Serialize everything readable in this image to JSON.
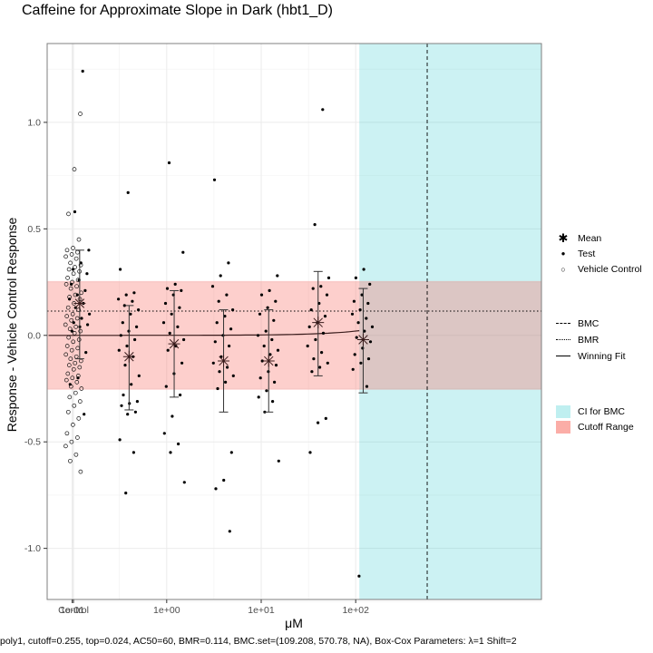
{
  "chart_data": {
    "type": "scatter",
    "title": "Caffeine for Approximate Slope in Dark (hbt1_D)",
    "xlabel": "μM",
    "ylabel": "Response - Vehicle Control Response",
    "x_scale": "log10",
    "x_ticks": [
      "Control",
      "1e-01",
      "1e+00",
      "1e+01",
      "1e+02"
    ],
    "y_ticks": [
      -1.0,
      -0.5,
      0.0,
      0.5,
      1.0
    ],
    "y_tick_labels": [
      "-1.0",
      "-0.5",
      "0.0",
      "0.5",
      "1.0"
    ],
    "ylim": [
      -1.24,
      1.37
    ],
    "grid": true,
    "legend": "right",
    "colors": {
      "cutoff": "#f8766d",
      "ci": "#00bfc4"
    },
    "cutoff_range": [
      -0.255,
      0.255
    ],
    "bmr": 0.114,
    "bmc": 570.78,
    "ci_for_bmc": [
      109.208,
      570.78
    ],
    "vehicle_control": {
      "values": [
        1.04,
        0.78,
        0.57,
        0.45,
        0.41,
        0.4,
        0.39,
        0.38,
        0.37,
        0.36,
        0.34,
        0.33,
        0.32,
        0.31,
        0.3,
        0.29,
        0.27,
        0.26,
        0.25,
        0.24,
        0.23,
        0.22,
        0.2,
        0.19,
        0.18,
        0.17,
        0.15,
        0.13,
        0.12,
        0.1,
        0.09,
        0.08,
        0.07,
        0.05,
        0.04,
        0.03,
        0.02,
        0.01,
        -0.01,
        -0.02,
        -0.03,
        -0.05,
        -0.06,
        -0.07,
        -0.09,
        -0.1,
        -0.11,
        -0.12,
        -0.13,
        -0.14,
        -0.15,
        -0.16,
        -0.18,
        -0.19,
        -0.2,
        -0.21,
        -0.22,
        -0.24,
        -0.25,
        -0.27,
        -0.29,
        -0.31,
        -0.33,
        -0.36,
        -0.39,
        -0.42,
        -0.46,
        -0.48,
        -0.5,
        -0.52,
        -0.56,
        -0.59,
        -0.64
      ]
    },
    "test": [
      {
        "dose": 0.12,
        "values": [
          1.24,
          0.58,
          0.4,
          0.34,
          0.31,
          0.29,
          0.26,
          0.24,
          0.21,
          0.19,
          0.17,
          0.15,
          0.13,
          0.1,
          0.08,
          0.06,
          0.05,
          0.04,
          0.02,
          -0.08,
          -0.2,
          -0.23,
          -0.37
        ]
      },
      {
        "dose": 0.4,
        "values": [
          0.67,
          0.31,
          0.2,
          0.19,
          0.17,
          0.16,
          0.14,
          0.12,
          0.1,
          0.06,
          0.04,
          0.02,
          0.0,
          -0.02,
          -0.05,
          -0.07,
          -0.1,
          -0.14,
          -0.19,
          -0.23,
          -0.28,
          -0.31,
          -0.32,
          -0.33,
          -0.36,
          -0.37,
          -0.49,
          -0.55,
          -0.74
        ]
      },
      {
        "dose": 1.2,
        "values": [
          0.81,
          0.39,
          0.24,
          0.22,
          0.21,
          0.19,
          0.15,
          0.13,
          0.1,
          0.06,
          0.04,
          0.01,
          -0.02,
          -0.05,
          -0.07,
          -0.13,
          -0.18,
          -0.24,
          -0.28,
          -0.38,
          -0.46,
          -0.51,
          -0.55,
          -0.69
        ]
      },
      {
        "dose": 4.0,
        "values": [
          0.73,
          0.34,
          0.28,
          0.23,
          0.19,
          0.16,
          0.12,
          0.09,
          0.06,
          0.03,
          0.0,
          -0.03,
          -0.05,
          -0.1,
          -0.13,
          -0.15,
          -0.17,
          -0.19,
          -0.22,
          -0.25,
          -0.55,
          -0.68,
          -0.72,
          -0.92
        ]
      },
      {
        "dose": 12.0,
        "values": [
          0.28,
          0.21,
          0.19,
          0.16,
          0.13,
          0.1,
          0.07,
          0.02,
          0.0,
          -0.02,
          -0.05,
          -0.07,
          -0.09,
          -0.12,
          -0.14,
          -0.17,
          -0.2,
          -0.22,
          -0.26,
          -0.29,
          -0.31,
          -0.36,
          -0.59
        ]
      },
      {
        "dose": 40.0,
        "values": [
          1.06,
          0.52,
          0.27,
          0.23,
          0.22,
          0.19,
          0.15,
          0.12,
          0.09,
          0.06,
          0.04,
          0.01,
          -0.02,
          -0.05,
          -0.08,
          -0.11,
          -0.13,
          -0.15,
          -0.17,
          -0.39,
          -0.41,
          -0.55
        ]
      },
      {
        "dose": 120.0,
        "values": [
          0.31,
          0.27,
          0.24,
          0.19,
          0.16,
          0.15,
          0.12,
          0.1,
          0.08,
          0.06,
          0.04,
          0.02,
          -0.01,
          -0.03,
          -0.06,
          -0.09,
          -0.11,
          -0.13,
          -0.16,
          -0.24,
          -1.13
        ]
      }
    ],
    "means": [
      {
        "dose": 0.12,
        "mean": 0.15,
        "lower": -0.11,
        "upper": 0.4
      },
      {
        "dose": 0.4,
        "mean": -0.1,
        "lower": -0.35,
        "upper": 0.14
      },
      {
        "dose": 1.2,
        "mean": -0.04,
        "lower": -0.29,
        "upper": 0.21
      },
      {
        "dose": 4.0,
        "mean": -0.12,
        "lower": -0.36,
        "upper": 0.12
      },
      {
        "dose": 12.0,
        "mean": -0.12,
        "lower": -0.36,
        "upper": 0.12
      },
      {
        "dose": 40.0,
        "mean": 0.06,
        "lower": -0.19,
        "upper": 0.3
      },
      {
        "dose": 120.0,
        "mean": -0.02,
        "lower": -0.27,
        "upper": 0.22
      }
    ],
    "winning_fit": {
      "model": "poly1",
      "slope": 0.0002,
      "intercept": 0.0
    },
    "legend_entries": {
      "mean": "Mean",
      "test": "Test",
      "vehicle_control": "Vehicle Control",
      "bmc": "BMC",
      "bmr": "BMR",
      "winning_fit": "Winning Fit",
      "ci_for_bmc": "CI for BMC",
      "cutoff_range": "Cutoff Range"
    },
    "caption": "poly1, cutoff=0.255, top=0.024, AC50=60, BMR=0.114, BMC.set=(109.208, 570.78, NA), Box-Cox Parameters: λ=1 Shift=2"
  }
}
